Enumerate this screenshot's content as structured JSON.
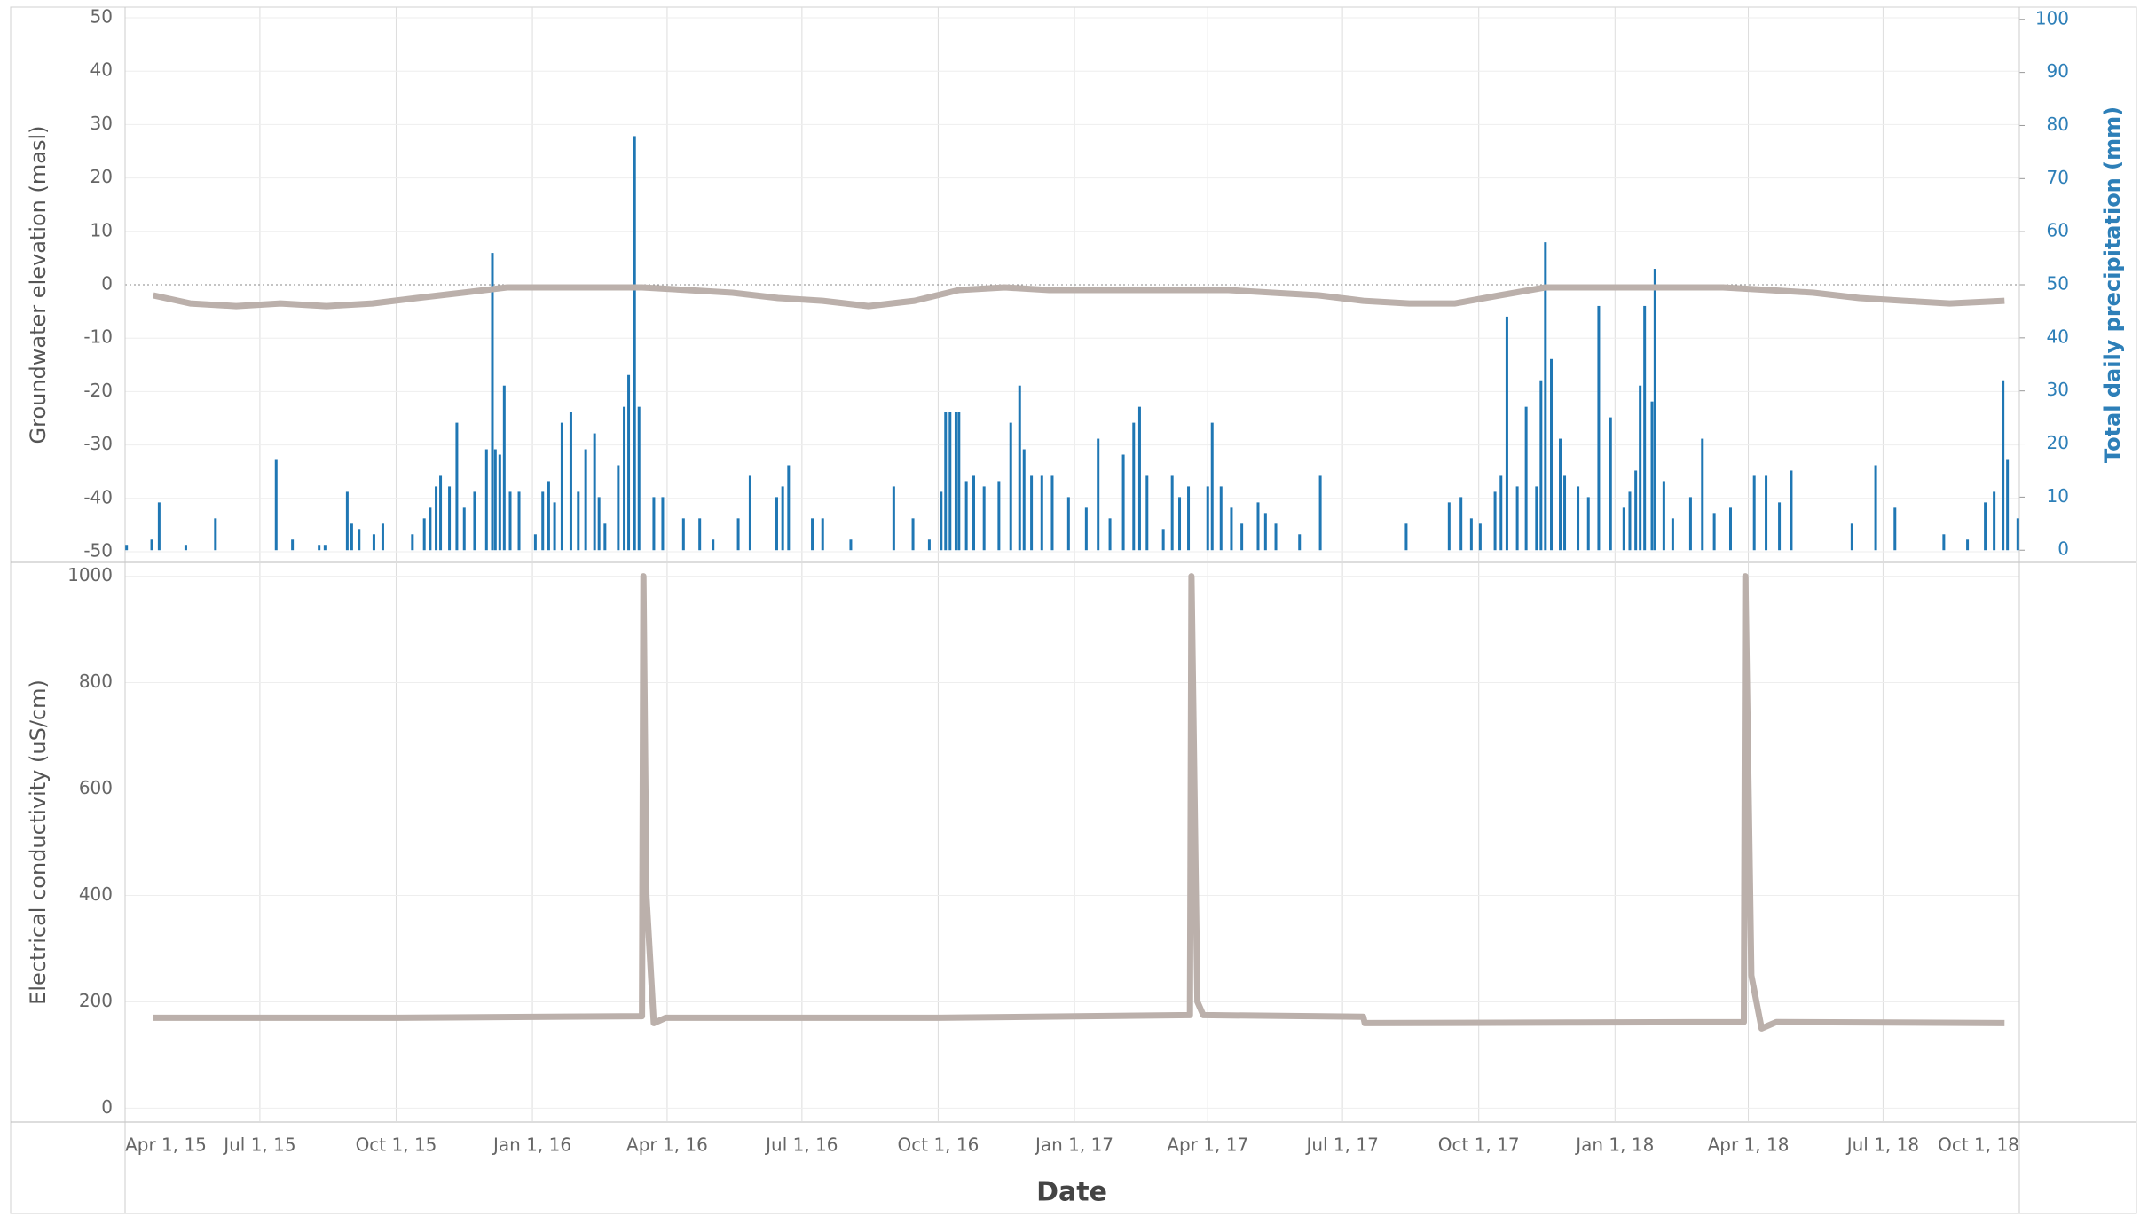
{
  "chart_data": {
    "type": "panels",
    "x_label": "Date",
    "xlim": [
      "2015-04-01",
      "2018-10-01"
    ],
    "xticks": [
      {
        "value": "2015-04-01",
        "label": "Apr 1, 15"
      },
      {
        "value": "2015-07-01",
        "label": "Jul 1, 15"
      },
      {
        "value": "2015-10-01",
        "label": "Oct 1, 15"
      },
      {
        "value": "2016-01-01",
        "label": "Jan 1, 16"
      },
      {
        "value": "2016-04-01",
        "label": "Apr 1, 16"
      },
      {
        "value": "2016-07-01",
        "label": "Jul 1, 16"
      },
      {
        "value": "2016-10-01",
        "label": "Oct 1, 16"
      },
      {
        "value": "2017-01-01",
        "label": "Jan 1, 17"
      },
      {
        "value": "2017-04-01",
        "label": "Apr 1, 17"
      },
      {
        "value": "2017-07-01",
        "label": "Jul 1, 17"
      },
      {
        "value": "2017-10-01",
        "label": "Oct 1, 17"
      },
      {
        "value": "2018-01-01",
        "label": "Jan 1, 18"
      },
      {
        "value": "2018-04-01",
        "label": "Apr 1, 18"
      },
      {
        "value": "2018-07-01",
        "label": "Jul 1, 18"
      },
      {
        "value": "2018-10-01",
        "label": "Oct 1, 18"
      }
    ],
    "panels": [
      {
        "type": "combo",
        "y_label": "Groundwater elevation (masl)",
        "y2_label": "Total daily precipitation (mm)",
        "ylim": [
          -52,
          52
        ],
        "yticks": [
          -50,
          -40,
          -30,
          -20,
          -10,
          0,
          10,
          20,
          30,
          40,
          50
        ],
        "y2lim": [
          -2.3,
          102.3
        ],
        "y2ticks": [
          0,
          10,
          20,
          30,
          40,
          50,
          60,
          70,
          80,
          90,
          100
        ],
        "grid": true,
        "series": [
          {
            "kind": "line",
            "color": "#bbb0ab",
            "x": [
              "2015-04-20",
              "2015-05-15",
              "2015-06-15",
              "2015-07-15",
              "2015-08-15",
              "2015-09-15",
              "2015-10-15",
              "2015-11-15",
              "2015-12-15",
              "2016-01-15",
              "2016-02-15",
              "2016-03-15",
              "2016-04-15",
              "2016-05-15",
              "2016-06-15",
              "2016-07-15",
              "2016-08-15",
              "2016-09-15",
              "2016-10-15",
              "2016-11-15",
              "2016-12-15",
              "2017-01-15",
              "2017-02-15",
              "2017-03-15",
              "2017-04-15",
              "2017-05-15",
              "2017-06-15",
              "2017-07-15",
              "2017-08-15",
              "2017-09-15",
              "2017-10-15",
              "2017-11-15",
              "2017-12-15",
              "2018-01-15",
              "2018-02-15",
              "2018-03-15",
              "2018-04-15",
              "2018-05-15",
              "2018-06-15",
              "2018-07-15",
              "2018-08-15",
              "2018-09-21"
            ],
            "values": [
              -2,
              -3.5,
              -4,
              -3.5,
              -4,
              -3.5,
              -2.5,
              -1.5,
              -0.5,
              -0.5,
              -0.5,
              -0.5,
              -1,
              -1.5,
              -2.5,
              -3,
              -4,
              -3,
              -1,
              -0.5,
              -1,
              -1,
              -1,
              -1,
              -1,
              -1.5,
              -2,
              -3,
              -3.5,
              -3.5,
              -2,
              -0.5,
              -0.5,
              -0.5,
              -0.5,
              -0.5,
              -1,
              -1.5,
              -2.5,
              -3,
              -3.5,
              -3
            ]
          },
          {
            "kind": "bar",
            "axis": "y2",
            "color": "#1f77b4",
            "x": [
              "2015-04-02",
              "2015-04-19",
              "2015-04-24",
              "2015-05-12",
              "2015-06-01",
              "2015-07-12",
              "2015-07-23",
              "2015-08-10",
              "2015-08-14",
              "2015-08-29",
              "2015-09-01",
              "2015-09-06",
              "2015-09-16",
              "2015-09-22",
              "2015-10-12",
              "2015-10-20",
              "2015-10-24",
              "2015-10-28",
              "2015-10-31",
              "2015-11-06",
              "2015-11-11",
              "2015-11-16",
              "2015-11-23",
              "2015-12-01",
              "2015-12-05",
              "2015-12-07",
              "2015-12-10",
              "2015-12-13",
              "2015-12-17",
              "2015-12-23",
              "2016-01-03",
              "2016-01-08",
              "2016-01-12",
              "2016-01-16",
              "2016-01-21",
              "2016-01-27",
              "2016-02-01",
              "2016-02-06",
              "2016-02-12",
              "2016-02-15",
              "2016-02-19",
              "2016-02-28",
              "2016-03-03",
              "2016-03-06",
              "2016-03-10",
              "2016-03-13",
              "2016-03-23",
              "2016-03-29",
              "2016-04-12",
              "2016-04-23",
              "2016-05-02",
              "2016-05-19",
              "2016-05-27",
              "2016-06-14",
              "2016-06-18",
              "2016-06-22",
              "2016-07-08",
              "2016-07-15",
              "2016-08-03",
              "2016-09-01",
              "2016-09-14",
              "2016-09-25",
              "2016-10-03",
              "2016-10-06",
              "2016-10-09",
              "2016-10-13",
              "2016-10-15",
              "2016-10-20",
              "2016-10-25",
              "2016-11-01",
              "2016-11-11",
              "2016-11-19",
              "2016-11-25",
              "2016-11-28",
              "2016-12-03",
              "2016-12-10",
              "2016-12-17",
              "2016-12-28",
              "2017-01-09",
              "2017-01-17",
              "2017-01-25",
              "2017-02-03",
              "2017-02-10",
              "2017-02-14",
              "2017-02-19",
              "2017-03-02",
              "2017-03-08",
              "2017-03-13",
              "2017-03-19",
              "2017-04-01",
              "2017-04-04",
              "2017-04-10",
              "2017-04-17",
              "2017-04-24",
              "2017-05-05",
              "2017-05-10",
              "2017-05-17",
              "2017-06-02",
              "2017-06-16",
              "2017-08-13",
              "2017-09-11",
              "2017-09-19",
              "2017-09-26",
              "2017-10-02",
              "2017-10-12",
              "2017-10-16",
              "2017-10-20",
              "2017-10-27",
              "2017-11-02",
              "2017-11-09",
              "2017-11-12",
              "2017-11-15",
              "2017-11-19",
              "2017-11-25",
              "2017-11-28",
              "2017-12-07",
              "2017-12-14",
              "2017-12-21",
              "2017-12-29",
              "2018-01-07",
              "2018-01-11",
              "2018-01-15",
              "2018-01-18",
              "2018-01-21",
              "2018-01-26",
              "2018-01-28",
              "2018-02-03",
              "2018-02-09",
              "2018-02-21",
              "2018-03-01",
              "2018-03-09",
              "2018-03-20",
              "2018-04-05",
              "2018-04-13",
              "2018-04-22",
              "2018-04-30",
              "2018-06-10",
              "2018-06-26",
              "2018-07-09",
              "2018-08-11",
              "2018-08-27",
              "2018-09-08",
              "2018-09-14",
              "2018-09-20",
              "2018-09-23",
              "2018-09-30"
            ],
            "values": [
              1,
              2,
              9,
              1,
              6,
              17,
              2,
              1,
              1,
              11,
              5,
              4,
              3,
              5,
              3,
              6,
              8,
              12,
              14,
              12,
              24,
              8,
              11,
              19,
              56,
              19,
              18,
              31,
              11,
              11,
              3,
              11,
              13,
              9,
              24,
              26,
              11,
              19,
              22,
              10,
              5,
              16,
              27,
              33,
              78,
              27,
              10,
              10,
              6,
              6,
              2,
              6,
              14,
              10,
              12,
              16,
              6,
              6,
              2,
              12,
              6,
              2,
              11,
              26,
              26,
              26,
              26,
              13,
              14,
              12,
              13,
              24,
              31,
              19,
              14,
              14,
              14,
              10,
              8,
              21,
              6,
              18,
              24,
              27,
              14,
              4,
              14,
              10,
              12,
              12,
              24,
              12,
              8,
              5,
              9,
              7,
              5,
              3,
              14,
              5,
              9,
              10,
              6,
              5,
              11,
              14,
              44,
              12,
              27,
              12,
              32,
              58,
              36,
              21,
              14,
              12,
              10,
              46,
              25,
              8,
              11,
              15,
              31,
              46,
              28,
              53,
              13,
              6,
              10,
              21,
              7,
              8,
              14,
              14,
              9,
              15,
              5,
              16,
              8,
              3,
              2,
              9,
              11,
              32,
              17,
              6
            ]
          }
        ]
      },
      {
        "type": "line",
        "y_label": "Electrical conductivity (uS/cm)",
        "ylim": [
          -26,
          1026
        ],
        "yticks": [
          0,
          200,
          400,
          600,
          800,
          1000
        ],
        "grid": true,
        "series": [
          {
            "kind": "line",
            "color": "#bbb0ab",
            "x": [
              "2015-04-20",
              "2015-10-01",
              "2016-03-15",
              "2016-03-16",
              "2016-03-18",
              "2016-03-23",
              "2016-03-31",
              "2016-10-01",
              "2017-03-20",
              "2017-03-21",
              "2017-03-25",
              "2017-03-29",
              "2017-07-15",
              "2017-07-16",
              "2017-12-01",
              "2018-03-29",
              "2018-03-30",
              "2018-04-03",
              "2018-04-10",
              "2018-04-20",
              "2018-09-21"
            ],
            "values": [
              170,
              170,
              173,
              1000,
              400,
              160,
              170,
              170,
              175,
              1000,
              200,
              175,
              172,
              160,
              161,
              162,
              1000,
              250,
              150,
              162,
              160
            ]
          }
        ]
      }
    ]
  }
}
